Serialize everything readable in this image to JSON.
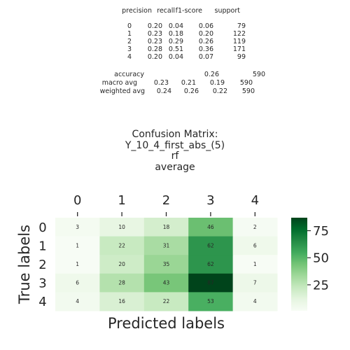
{
  "report": {
    "header": [
      "precision",
      "recall",
      "f1-score",
      "support"
    ],
    "rows": [
      {
        "label": "0",
        "precision": "0.20",
        "recall": "0.04",
        "f1": "0.06",
        "support": "79"
      },
      {
        "label": "1",
        "precision": "0.23",
        "recall": "0.18",
        "f1": "0.20",
        "support": "122"
      },
      {
        "label": "2",
        "precision": "0.23",
        "recall": "0.29",
        "f1": "0.26",
        "support": "119"
      },
      {
        "label": "3",
        "precision": "0.28",
        "recall": "0.51",
        "f1": "0.36",
        "support": "171"
      },
      {
        "label": "4",
        "precision": "0.20",
        "recall": "0.04",
        "f1": "0.07",
        "support": "99"
      }
    ],
    "accuracy": {
      "label": "accuracy",
      "f1": "0.26",
      "support": "590"
    },
    "macro": {
      "label": "macro avg",
      "precision": "0.23",
      "recall": "0.21",
      "f1": "0.19",
      "support": "590"
    },
    "weighted": {
      "label": "weighted avg",
      "precision": "0.24",
      "recall": "0.26",
      "f1": "0.22",
      "support": "590"
    }
  },
  "chart_data": {
    "type": "heatmap",
    "title_lines": [
      "Confusion Matrix:",
      "Y_10_4_first_abs_(5)",
      "rf",
      "average"
    ],
    "xlabel": "Predicted labels",
    "ylabel": "True labels",
    "x_categories": [
      "0",
      "1",
      "2",
      "3",
      "4"
    ],
    "y_categories": [
      "0",
      "1",
      "2",
      "3",
      "4"
    ],
    "values": [
      [
        3,
        10,
        18,
        46,
        2
      ],
      [
        1,
        22,
        31,
        62,
        6
      ],
      [
        1,
        20,
        35,
        62,
        1
      ],
      [
        6,
        28,
        43,
        87,
        7
      ],
      [
        4,
        16,
        22,
        53,
        4
      ]
    ],
    "colormap": "Greens",
    "vmin": 1,
    "vmax": 87,
    "colorbar_ticks": [
      25,
      50,
      75
    ],
    "x_tick_position": "top",
    "grid": false
  }
}
